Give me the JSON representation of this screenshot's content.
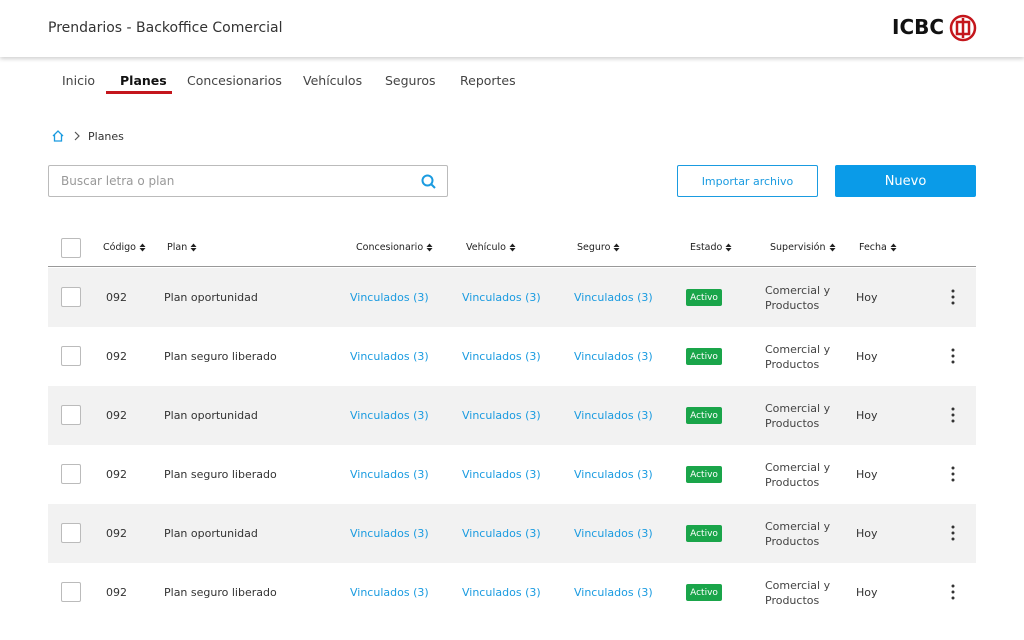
{
  "header": {
    "title": "Prendarios - Backoffice Comercial",
    "logo": "ICBC"
  },
  "nav": {
    "items": [
      "Inicio",
      "Planes",
      "Concesionarios",
      "Vehículos",
      "Seguros",
      "Reportes"
    ]
  },
  "breadcrumb": {
    "current": "Planes"
  },
  "search": {
    "placeholder": "Buscar letra o plan"
  },
  "buttons": {
    "import": "Importar archivo",
    "new": "Nuevo"
  },
  "table": {
    "columns": [
      "Código",
      "Plan",
      "Concesionario",
      "Vehículo",
      "Seguro",
      "Estado",
      "Supervisión",
      "Fecha"
    ],
    "rows": [
      [
        "092",
        "Plan oportunidad",
        "Vinculados (3)",
        "Vinculados (3)",
        "Vinculados (3)",
        "Activo",
        "Comercial y Productos",
        "Hoy"
      ],
      [
        "092",
        "Plan seguro liberado",
        "Vinculados (3)",
        "Vinculados (3)",
        "Vinculados (3)",
        "Activo",
        "Comercial y Productos",
        "Hoy"
      ],
      [
        "092",
        "Plan oportunidad",
        "Vinculados (3)",
        "Vinculados (3)",
        "Vinculados (3)",
        "Activo",
        "Comercial y Productos",
        "Hoy"
      ],
      [
        "092",
        "Plan seguro liberado",
        "Vinculados (3)",
        "Vinculados (3)",
        "Vinculados (3)",
        "Activo",
        "Comercial y Productos",
        "Hoy"
      ],
      [
        "092",
        "Plan oportunidad",
        "Vinculados (3)",
        "Vinculados (3)",
        "Vinculados (3)",
        "Activo",
        "Comercial y Productos",
        "Hoy"
      ],
      [
        "092",
        "Plan seguro liberado",
        "Vinculados (3)",
        "Vinculados (3)",
        "Vinculados (3)",
        "Activo",
        "Comercial y Productos",
        "Hoy"
      ]
    ]
  }
}
